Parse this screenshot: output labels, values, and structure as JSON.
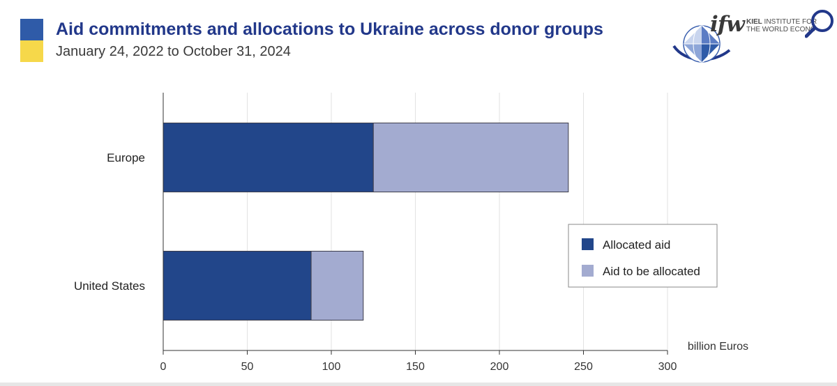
{
  "header": {
    "title": "Aid commitments and allocations to Ukraine across donor groups",
    "subtitle": "January 24, 2022 to October 31, 2024",
    "flag_colors": [
      "#2f5ba8",
      "#f6d84a"
    ]
  },
  "logo": {
    "mark": "ifw",
    "line1_bold": "KIEL",
    "line1_rest": " INSTITUTE FOR",
    "line2": "THE WORLD ECONO",
    "icon": "globe-icon",
    "search_icon": "magnifier-icon"
  },
  "chart_data": {
    "type": "bar",
    "orientation": "horizontal",
    "stacked": true,
    "categories": [
      "Europe",
      "United States"
    ],
    "series": [
      {
        "name": "Allocated aid",
        "values": [
          125,
          88
        ],
        "color": "#22468a"
      },
      {
        "name": "Aid to be allocated",
        "values": [
          116,
          31
        ],
        "color": "#a3abd0"
      }
    ],
    "xlabel": "billion Euros",
    "xlim": [
      0,
      300
    ],
    "xticks": [
      "0",
      "50",
      "100",
      "150",
      "200",
      "250",
      "300"
    ],
    "grid": "vertical",
    "legend_position": "bottom-right"
  }
}
